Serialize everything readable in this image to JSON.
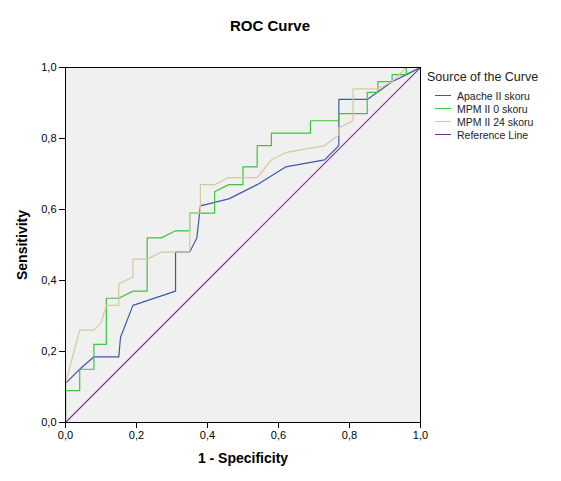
{
  "chart_data": {
    "type": "line",
    "title": "ROC Curve",
    "x_label": "1 - Specificity",
    "y_label": "Sensitivity",
    "legend_title": "Source of the Curve",
    "legend": "right",
    "grid": false,
    "xlim": [
      0,
      1
    ],
    "ylim": [
      0,
      1
    ],
    "xticks": [
      {
        "value": 0,
        "label": "0,0"
      },
      {
        "value": 0.2,
        "label": "0,2"
      },
      {
        "value": 0.4,
        "label": "0,4"
      },
      {
        "value": 0.6,
        "label": "0,6"
      },
      {
        "value": 0.8,
        "label": "0,8"
      },
      {
        "value": 1,
        "label": "1,0"
      }
    ],
    "yticks": [
      {
        "value": 0,
        "label": "0,0"
      },
      {
        "value": 0.2,
        "label": "0,2"
      },
      {
        "value": 0.4,
        "label": "0,4"
      },
      {
        "value": 0.6,
        "label": "0,6"
      },
      {
        "value": 0.8,
        "label": "0,8"
      },
      {
        "value": 1,
        "label": "1,0"
      }
    ],
    "series": [
      {
        "name": "Apache II skoru",
        "color": "#3e58ac",
        "x": [
          0,
          0,
          0.04,
          0.08,
          0.15,
          0.155,
          0.19,
          0.31,
          0.31,
          0.35,
          0.37,
          0.38,
          0.46,
          0.54,
          0.62,
          0.73,
          0.77,
          0.77,
          0.85,
          0.92,
          0.96,
          1
        ],
        "values": [
          0,
          0.11,
          0.15,
          0.185,
          0.185,
          0.24,
          0.33,
          0.37,
          0.48,
          0.48,
          0.52,
          0.61,
          0.63,
          0.67,
          0.72,
          0.74,
          0.78,
          0.91,
          0.91,
          0.96,
          0.98,
          1
        ]
      },
      {
        "name": "MPM II 0 skoru",
        "color": "#3ec43e",
        "x": [
          0,
          0,
          0.04,
          0.04,
          0.08,
          0.08,
          0.115,
          0.115,
          0.15,
          0.19,
          0.23,
          0.23,
          0.27,
          0.31,
          0.35,
          0.35,
          0.42,
          0.42,
          0.46,
          0.5,
          0.5,
          0.54,
          0.54,
          0.58,
          0.58,
          0.69,
          0.69,
          0.77,
          0.77,
          0.85,
          0.85,
          0.88,
          0.88,
          0.92,
          0.92,
          0.96,
          0.96,
          1
        ],
        "values": [
          0,
          0.09,
          0.09,
          0.15,
          0.15,
          0.22,
          0.22,
          0.35,
          0.35,
          0.37,
          0.37,
          0.52,
          0.52,
          0.54,
          0.54,
          0.59,
          0.59,
          0.65,
          0.67,
          0.67,
          0.72,
          0.72,
          0.78,
          0.78,
          0.815,
          0.815,
          0.85,
          0.85,
          0.87,
          0.87,
          0.93,
          0.93,
          0.96,
          0.96,
          0.98,
          0.98,
          1,
          1
        ]
      },
      {
        "name": "MPM II 24 skoru",
        "color": "#d4c99c",
        "x": [
          0,
          0,
          0.04,
          0.08,
          0.1,
          0.115,
          0.15,
          0.15,
          0.19,
          0.19,
          0.23,
          0.27,
          0.35,
          0.35,
          0.38,
          0.38,
          0.42,
          0.46,
          0.54,
          0.58,
          0.62,
          0.73,
          0.77,
          0.77,
          0.81,
          0.81,
          0.88,
          0.92,
          0.96,
          1
        ],
        "values": [
          0,
          0.11,
          0.26,
          0.26,
          0.28,
          0.33,
          0.33,
          0.39,
          0.41,
          0.46,
          0.46,
          0.48,
          0.48,
          0.59,
          0.59,
          0.67,
          0.67,
          0.69,
          0.69,
          0.74,
          0.76,
          0.78,
          0.81,
          0.83,
          0.85,
          0.94,
          0.94,
          0.96,
          1,
          1
        ]
      },
      {
        "name": "Reference Line",
        "color": "#7b2d8b",
        "x": [
          0,
          1
        ],
        "values": [
          0,
          1
        ]
      }
    ]
  }
}
